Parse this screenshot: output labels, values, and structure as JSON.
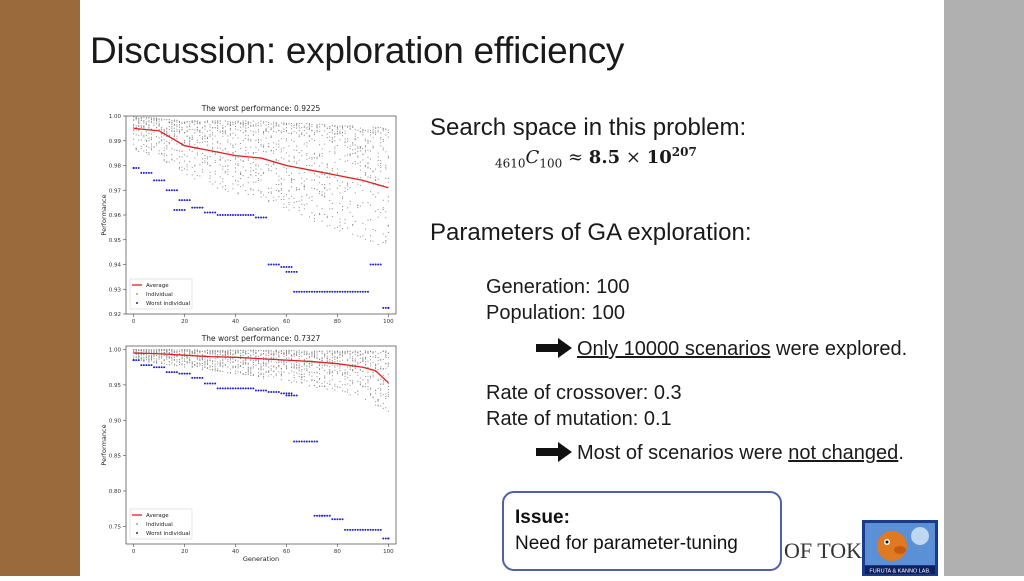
{
  "slide": {
    "title": "Discussion: exploration efficiency",
    "search_space_label": "Search space in this problem:",
    "formula": {
      "n": "4610",
      "c": "C",
      "k": "100",
      "approx": "≈",
      "mant": "8.5",
      "times": "×",
      "base": "10",
      "exp": "207"
    },
    "ga_params_label": "Parameters of GA exploration:",
    "generation": "Generation: 100",
    "population": "Population: 100",
    "conclusion1": {
      "underlined": "Only 10000 scenarios",
      "rest": " were explored."
    },
    "crossover": "Rate of crossover: 0.3",
    "mutation": "Rate of mutation: 0.1",
    "conclusion2": {
      "prefix": "Most of scenarios were ",
      "underlined": "not changed",
      "suffix": "."
    },
    "issue": {
      "title": "Issue:",
      "body": "Need for parameter-tuning"
    },
    "logo_text": "OF TOKYO",
    "logo_caption": "FURUTA & KANNO LAB."
  },
  "chart_data": [
    {
      "type": "scatter",
      "title": "The worst performance: 0.9225",
      "xlabel": "Generation",
      "ylabel": "Performance",
      "xlim": [
        -3,
        103
      ],
      "ylim": [
        0.92,
        1.0
      ],
      "xticks": [
        "0",
        "20",
        "40",
        "60",
        "80",
        "100"
      ],
      "yticks": [
        "0.92",
        "0.93",
        "0.94",
        "0.95",
        "0.96",
        "0.97",
        "0.98",
        "0.99",
        "1.00"
      ],
      "legend": [
        "Average",
        "Individual",
        "Worst individual"
      ],
      "legend_position": "lower-left",
      "series": [
        {
          "name": "Average",
          "kind": "line",
          "color": "#e02020",
          "x": [
            0,
            10,
            20,
            30,
            40,
            50,
            60,
            70,
            80,
            90,
            100
          ],
          "y": [
            0.995,
            0.994,
            0.988,
            0.986,
            0.984,
            0.983,
            0.98,
            0.978,
            0.976,
            0.974,
            0.971
          ]
        },
        {
          "name": "Individual",
          "kind": "band",
          "color": "#888888",
          "x": [
            0,
            10,
            20,
            30,
            40,
            50,
            60,
            70,
            80,
            90,
            100
          ],
          "y_low": [
            0.986,
            0.983,
            0.976,
            0.972,
            0.968,
            0.966,
            0.962,
            0.957,
            0.953,
            0.95,
            0.946
          ],
          "y_high": [
            1.0,
            0.999,
            0.998,
            0.998,
            0.998,
            0.998,
            0.997,
            0.997,
            0.996,
            0.996,
            0.995
          ]
        },
        {
          "name": "Worst individual",
          "kind": "scatter",
          "color": "#2222cc",
          "x": [
            0,
            5,
            10,
            15,
            18,
            20,
            25,
            30,
            35,
            40,
            45,
            50,
            55,
            60,
            62,
            65,
            70,
            75,
            80,
            85,
            90,
            95,
            100
          ],
          "y": [
            0.979,
            0.977,
            0.974,
            0.97,
            0.962,
            0.966,
            0.963,
            0.961,
            0.96,
            0.96,
            0.96,
            0.959,
            0.94,
            0.939,
            0.937,
            0.929,
            0.929,
            0.929,
            0.929,
            0.929,
            0.929,
            0.94,
            0.9225
          ]
        }
      ]
    },
    {
      "type": "scatter",
      "title": "The worst performance: 0.7327",
      "xlabel": "Generation",
      "ylabel": "Performance",
      "xlim": [
        -3,
        103
      ],
      "ylim": [
        0.725,
        1.005
      ],
      "xticks": [
        "0",
        "20",
        "40",
        "60",
        "80",
        "100"
      ],
      "yticks": [
        "0.75",
        "0.80",
        "0.85",
        "0.90",
        "0.95",
        "1.00"
      ],
      "legend": [
        "Average",
        "Individual",
        "Worst individual"
      ],
      "legend_position": "lower-left",
      "series": [
        {
          "name": "Average",
          "kind": "line",
          "color": "#e02020",
          "x": [
            0,
            10,
            20,
            30,
            40,
            50,
            60,
            70,
            80,
            90,
            95,
            100
          ],
          "y": [
            0.995,
            0.994,
            0.992,
            0.99,
            0.989,
            0.987,
            0.985,
            0.983,
            0.98,
            0.975,
            0.97,
            0.953
          ]
        },
        {
          "name": "Individual",
          "kind": "band",
          "color": "#888888",
          "x": [
            0,
            10,
            20,
            30,
            40,
            50,
            60,
            70,
            80,
            90,
            100
          ],
          "y_low": [
            0.985,
            0.98,
            0.975,
            0.97,
            0.965,
            0.96,
            0.955,
            0.948,
            0.94,
            0.93,
            0.91
          ],
          "y_high": [
            1.0,
            1.0,
            1.0,
            0.999,
            0.999,
            0.999,
            0.999,
            0.998,
            0.998,
            0.998,
            0.998
          ]
        },
        {
          "name": "Worst individual",
          "kind": "scatter",
          "color": "#2222cc",
          "x": [
            0,
            5,
            10,
            15,
            20,
            25,
            30,
            35,
            40,
            45,
            50,
            55,
            60,
            62,
            65,
            70,
            73,
            75,
            80,
            85,
            90,
            95,
            100
          ],
          "y": [
            0.985,
            0.978,
            0.975,
            0.968,
            0.966,
            0.96,
            0.952,
            0.945,
            0.945,
            0.945,
            0.942,
            0.94,
            0.938,
            0.935,
            0.87,
            0.87,
            0.765,
            0.765,
            0.76,
            0.745,
            0.745,
            0.745,
            0.7327
          ]
        }
      ]
    }
  ]
}
